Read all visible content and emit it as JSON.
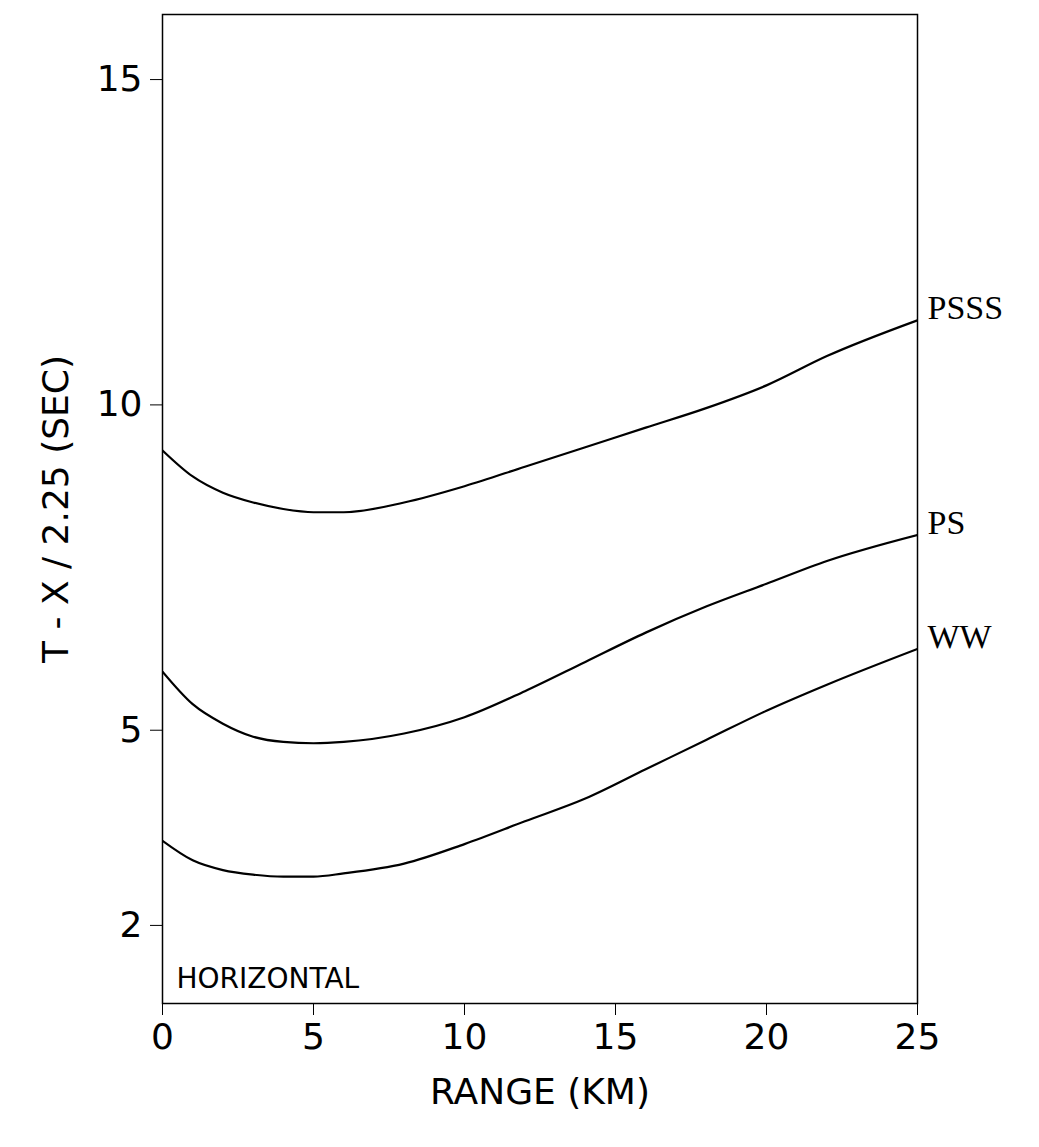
{
  "chart_data": {
    "type": "line",
    "x_label": "RANGE (KM)",
    "y_label": "T - X / 2.25 (SEC)",
    "annotation": "HORIZONTAL",
    "xlim": [
      0,
      25
    ],
    "xticks": [
      0,
      5,
      10,
      15,
      20,
      25
    ],
    "ylim": [
      0.8,
      16
    ],
    "yticks": [
      2,
      5,
      10,
      15
    ],
    "grid": false,
    "x": [
      0,
      1,
      2,
      3,
      4,
      5,
      6,
      8,
      10,
      12,
      14,
      16,
      18,
      20,
      22,
      25
    ],
    "series": [
      {
        "name": "PSSS",
        "color": "#000000",
        "values": [
          9.3,
          8.9,
          8.65,
          8.5,
          8.4,
          8.35,
          8.35,
          8.5,
          8.75,
          9.05,
          9.35,
          9.65,
          9.95,
          10.3,
          10.75,
          11.3
        ]
      },
      {
        "name": "PS",
        "color": "#000000",
        "values": [
          5.9,
          5.4,
          5.1,
          4.9,
          4.82,
          4.8,
          4.82,
          4.95,
          5.2,
          5.6,
          6.05,
          6.5,
          6.9,
          7.25,
          7.6,
          8.0
        ]
      },
      {
        "name": "WW",
        "color": "#000000",
        "values": [
          3.3,
          3.0,
          2.85,
          2.78,
          2.75,
          2.75,
          2.8,
          2.95,
          3.25,
          3.6,
          3.95,
          4.4,
          4.85,
          5.3,
          5.7,
          6.25
        ]
      }
    ]
  }
}
